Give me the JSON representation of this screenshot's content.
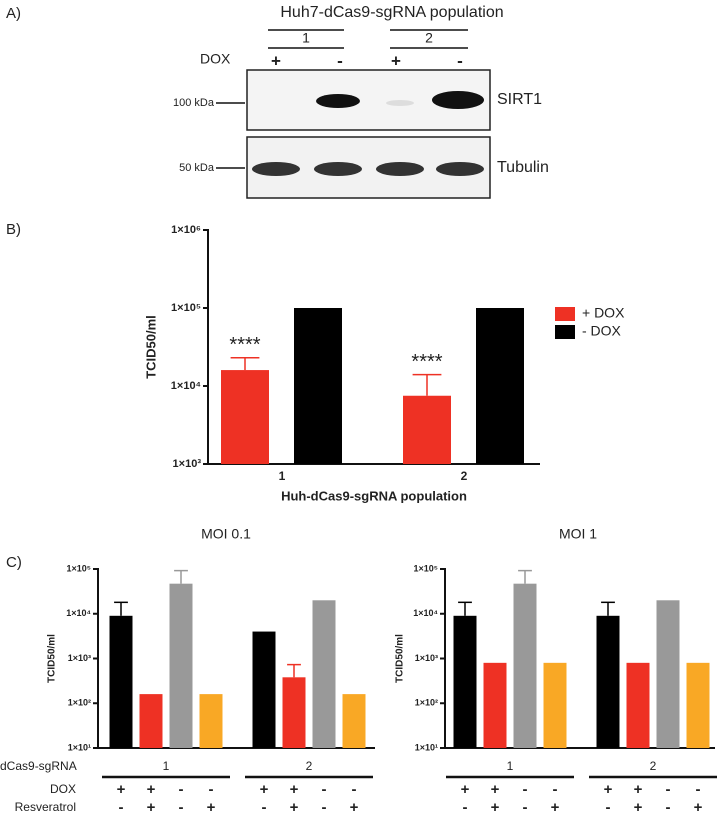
{
  "western_blot": {
    "panel_label": "A)",
    "title": "Huh7-dCas9-sgRNA population",
    "groups": [
      "1",
      "2"
    ],
    "row_label": "DOX",
    "signs": [
      "+",
      "-",
      "+",
      "-"
    ],
    "markers": [
      "100 kDa",
      "50 kDa"
    ],
    "proteins": [
      "SIRT1",
      "Tubulin"
    ]
  },
  "chart_data": [
    {
      "type": "bar",
      "panel_label": "B)",
      "log_scale": true,
      "ylabel": "TCID50/ml",
      "xlabel": "Huh-dCas9-sgRNA population",
      "categories": [
        "1",
        "2"
      ],
      "ylim": [
        1000,
        1000000
      ],
      "yticks": [
        {
          "value": 1000,
          "label": "1×10³"
        },
        {
          "value": 10000,
          "label": "1×10⁴"
        },
        {
          "value": 100000,
          "label": "1×10⁵"
        },
        {
          "value": 1000000,
          "label": "1×10⁶"
        }
      ],
      "series": [
        {
          "name": "+ DOX",
          "color": "#ee3124",
          "values": [
            16000,
            7500
          ],
          "errors": [
            7000,
            6500
          ],
          "annotations": [
            "****",
            "****"
          ]
        },
        {
          "name": "- DOX",
          "color": "#000000",
          "values": [
            100000,
            100000
          ]
        }
      ],
      "legend": "right"
    },
    {
      "type": "bar",
      "panel_label": "C)",
      "title": "MOI 0.1",
      "log_scale": true,
      "ylabel": "TCID50/ml",
      "categories": [
        "1",
        "2"
      ],
      "group_label": "dCas9-sgRNA",
      "ylim": [
        10,
        100000
      ],
      "yticks": [
        {
          "value": 10,
          "label": "1×10¹"
        },
        {
          "value": 100,
          "label": "1×10²"
        },
        {
          "value": 1000,
          "label": "1×10³"
        },
        {
          "value": 10000,
          "label": "1×10⁴"
        },
        {
          "value": 100000,
          "label": "1×10⁵"
        }
      ],
      "series": [
        {
          "color": "#000000",
          "values": [
            9000,
            4000
          ],
          "errors": [
            9000,
            null
          ]
        },
        {
          "color": "#ee3124",
          "values": [
            160,
            380
          ],
          "errors": [
            null,
            350
          ]
        },
        {
          "color": "#999999",
          "values": [
            47000,
            20000
          ],
          "errors": [
            45000,
            null
          ]
        },
        {
          "color": "#f9a825",
          "values": [
            160,
            160
          ]
        }
      ],
      "condition_rows": [
        {
          "label": "DOX",
          "signs": [
            "+",
            "+",
            "-",
            "-"
          ]
        },
        {
          "label": "Resveratrol",
          "signs": [
            "-",
            "+",
            "-",
            "+"
          ]
        }
      ]
    },
    {
      "type": "bar",
      "title": "MOI 1",
      "log_scale": true,
      "ylabel": "TCID50/ml",
      "categories": [
        "1",
        "2"
      ],
      "ylim": [
        10,
        100000
      ],
      "yticks": [
        {
          "value": 10,
          "label": "1×10¹"
        },
        {
          "value": 100,
          "label": "1×10²"
        },
        {
          "value": 1000,
          "label": "1×10³"
        },
        {
          "value": 10000,
          "label": "1×10⁴"
        },
        {
          "value": 100000,
          "label": "1×10⁵"
        }
      ],
      "series": [
        {
          "color": "#000000",
          "values": [
            9000,
            9000
          ],
          "errors": [
            9000,
            9000
          ]
        },
        {
          "color": "#ee3124",
          "values": [
            800,
            800
          ]
        },
        {
          "color": "#999999",
          "values": [
            47000,
            20000
          ],
          "errors": [
            45000,
            null
          ]
        },
        {
          "color": "#f9a825",
          "values": [
            800,
            800
          ]
        }
      ],
      "condition_rows": [
        {
          "signs": [
            "+",
            "+",
            "-",
            "-"
          ]
        },
        {
          "signs": [
            "-",
            "+",
            "-",
            "+"
          ]
        }
      ]
    }
  ]
}
